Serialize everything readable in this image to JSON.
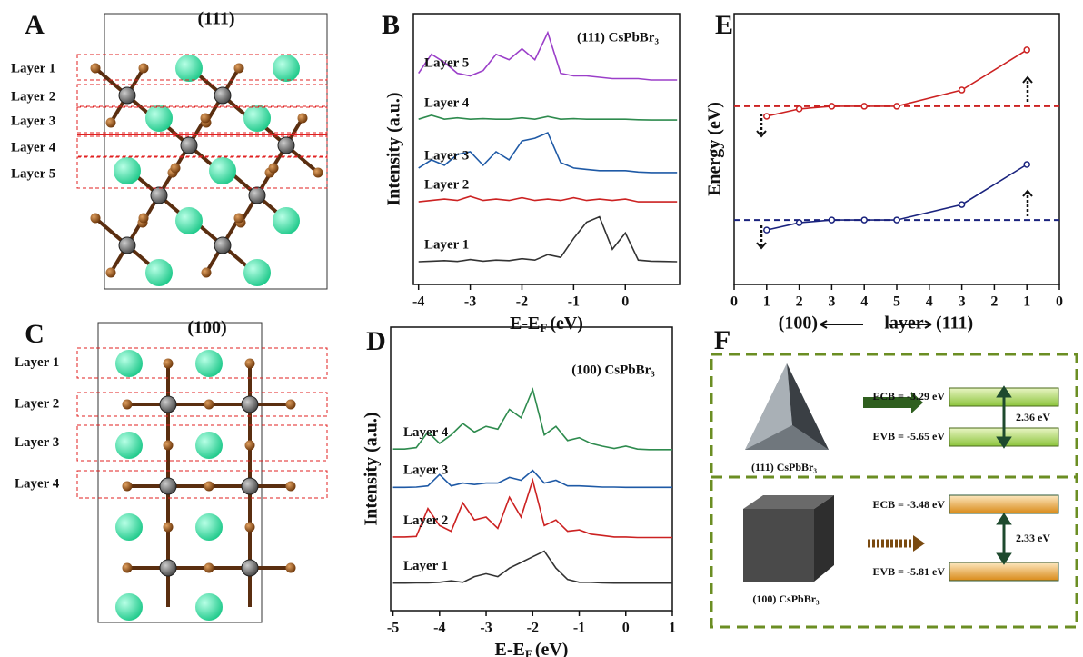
{
  "panel_labels": [
    "A",
    "B",
    "C",
    "D",
    "E",
    "F"
  ],
  "structures": {
    "A": {
      "title": "(111)",
      "layers": [
        "Layer 1",
        "Layer 2",
        "Layer 3",
        "Layer 4",
        "Layer 5"
      ]
    },
    "C": {
      "title": "(100)",
      "layers": [
        "Layer 1",
        "Layer 2",
        "Layer 3",
        "Layer 4"
      ]
    }
  },
  "chart_data": [
    {
      "type": "line",
      "annotation": "(111) CsPbBr₃",
      "xlabel": [
        "E-E",
        "F",
        "(eV)"
      ],
      "ylabel": "Intensity (a.u.)",
      "xlim": [
        -4.1,
        1.05
      ],
      "ylim": [
        0,
        10
      ],
      "xticks": [
        -4,
        -3,
        -2,
        -1,
        0
      ],
      "x": [
        -4,
        -3.75,
        -3.5,
        -3.25,
        -3,
        -2.75,
        -2.5,
        -2.25,
        -2,
        -1.75,
        -1.5,
        -1.25,
        -1,
        -0.75,
        -0.5,
        -0.25,
        0,
        0.25,
        0.5,
        0.75,
        1
      ],
      "series": [
        {
          "name": "Layer 5",
          "color": "#9b3fc9",
          "values": [
            7.8,
            8.5,
            8.2,
            7.8,
            7.7,
            7.9,
            8.5,
            8.3,
            8.7,
            8.3,
            9.3,
            7.8,
            7.7,
            7.7,
            7.65,
            7.6,
            7.6,
            7.6,
            7.55,
            7.55,
            7.55
          ]
        },
        {
          "name": "Layer 4",
          "color": "#2e8b4e",
          "values": [
            6.1,
            6.25,
            6.1,
            6.15,
            6.1,
            6.12,
            6.1,
            6.1,
            6.15,
            6.1,
            6.2,
            6.1,
            6.12,
            6.1,
            6.1,
            6.1,
            6.1,
            6.08,
            6.07,
            6.07,
            6.07
          ]
        },
        {
          "name": "Layer 3",
          "color": "#1f5aa6",
          "values": [
            4.3,
            4.6,
            4.4,
            4.8,
            4.9,
            4.4,
            4.9,
            4.6,
            5.3,
            5.4,
            5.6,
            4.5,
            4.3,
            4.25,
            4.2,
            4.2,
            4.2,
            4.15,
            4.13,
            4.13,
            4.13
          ]
        },
        {
          "name": "Layer 2",
          "color": "#cc2222",
          "values": [
            3.05,
            3.1,
            3.15,
            3.1,
            3.25,
            3.1,
            3.15,
            3.1,
            3.2,
            3.1,
            3.15,
            3.1,
            3.2,
            3.1,
            3.15,
            3.1,
            3.15,
            3.05,
            3.05,
            3.05,
            3.05
          ]
        },
        {
          "name": "Layer 1",
          "color": "#333333",
          "values": [
            0.84,
            0.86,
            0.88,
            0.85,
            0.92,
            0.86,
            0.9,
            0.88,
            0.95,
            0.9,
            1.1,
            1.0,
            1.7,
            2.3,
            2.5,
            1.3,
            1.9,
            0.9,
            0.86,
            0.85,
            0.84
          ]
        }
      ]
    },
    {
      "type": "line",
      "annotation": "(100) CsPbBr₃",
      "xlabel": [
        "E-E",
        "F",
        "(eV)"
      ],
      "ylabel": "Intensity (a.u.)",
      "xlim": [
        -5.05,
        1
      ],
      "ylim": [
        0,
        10
      ],
      "xticks": [
        -5,
        -4,
        -3,
        -2,
        -1,
        0,
        1
      ],
      "x": [
        -5,
        -4.75,
        -4.5,
        -4.25,
        -4,
        -3.75,
        -3.5,
        -3.25,
        -3,
        -2.75,
        -2.5,
        -2.25,
        -2,
        -1.75,
        -1.5,
        -1.25,
        -1,
        -0.75,
        -0.5,
        -0.25,
        0,
        0.25,
        0.5,
        0.75,
        1
      ],
      "series": [
        {
          "name": "Layer 4",
          "color": "#2e8b4e",
          "values": [
            5.7,
            5.7,
            5.75,
            6.3,
            5.9,
            6.2,
            6.6,
            6.3,
            6.5,
            6.4,
            7.1,
            6.8,
            7.8,
            6.2,
            6.5,
            6.0,
            6.1,
            5.9,
            5.8,
            5.72,
            5.8,
            5.7,
            5.68,
            5.68,
            5.68
          ]
        },
        {
          "name": "Layer 3",
          "color": "#1f5aa6",
          "values": [
            4.35,
            4.35,
            4.36,
            4.4,
            4.8,
            4.4,
            4.5,
            4.45,
            4.5,
            4.5,
            4.7,
            4.6,
            4.95,
            4.5,
            4.6,
            4.4,
            4.4,
            4.38,
            4.36,
            4.36,
            4.35,
            4.35,
            4.35,
            4.35,
            4.35
          ]
        },
        {
          "name": "Layer 2",
          "color": "#cc2222",
          "values": [
            2.6,
            2.6,
            2.62,
            3.6,
            3.0,
            2.8,
            3.8,
            3.2,
            3.3,
            2.9,
            4.0,
            3.3,
            4.6,
            3.0,
            3.2,
            2.8,
            2.85,
            2.7,
            2.65,
            2.6,
            2.6,
            2.58,
            2.58,
            2.58,
            2.58
          ]
        },
        {
          "name": "Layer 1",
          "color": "#333333",
          "values": [
            0.97,
            0.97,
            0.98,
            0.98,
            1.0,
            1.05,
            1.0,
            1.2,
            1.3,
            1.2,
            1.5,
            1.7,
            1.9,
            2.1,
            1.5,
            1.1,
            1.0,
            1.0,
            0.98,
            0.97,
            0.97,
            0.97,
            0.97,
            0.97,
            0.97
          ]
        }
      ]
    },
    {
      "type": "line",
      "markers": true,
      "xlabel": [
        "(100)",
        "layer",
        "(111)"
      ],
      "ylabel": "Energy (eV)",
      "xlim": [
        0,
        10
      ],
      "ylim": [
        0,
        10
      ],
      "xticks": [
        0,
        1,
        2,
        3,
        4,
        5,
        {
          "value": 6,
          "label": "4"
        },
        {
          "value": 7,
          "label": "3"
        },
        {
          "value": 8,
          "label": "2"
        },
        {
          "value": 9,
          "label": "1"
        },
        {
          "value": 10,
          "label": "0"
        }
      ],
      "x": [
        1,
        2,
        3,
        4,
        5,
        7,
        9
      ],
      "reference_lines": [
        {
          "value": 6.58,
          "color": "#cc2222"
        },
        {
          "value": 2.38,
          "color": "#1a237e"
        }
      ],
      "series": [
        {
          "color": "#cc2222",
          "values": [
            6.21,
            6.48,
            6.58,
            6.58,
            6.58,
            7.18,
            8.66
          ]
        },
        {
          "color": "#1a237e",
          "values": [
            2.01,
            2.28,
            2.38,
            2.38,
            2.38,
            2.95,
            4.43
          ]
        }
      ]
    }
  ],
  "scheme": {
    "rows": [
      {
        "material": "(111) CsPbBr₃",
        "ecb": "ECB = -3.29 eV",
        "evb": "EVB = -5.65 eV",
        "gap": "2.36 eV"
      },
      {
        "material": "(100) CsPbBr₃",
        "ecb": "ECB = -3.48 eV",
        "evb": "EVB = -5.81 eV",
        "gap": "2.33 eV"
      }
    ]
  }
}
